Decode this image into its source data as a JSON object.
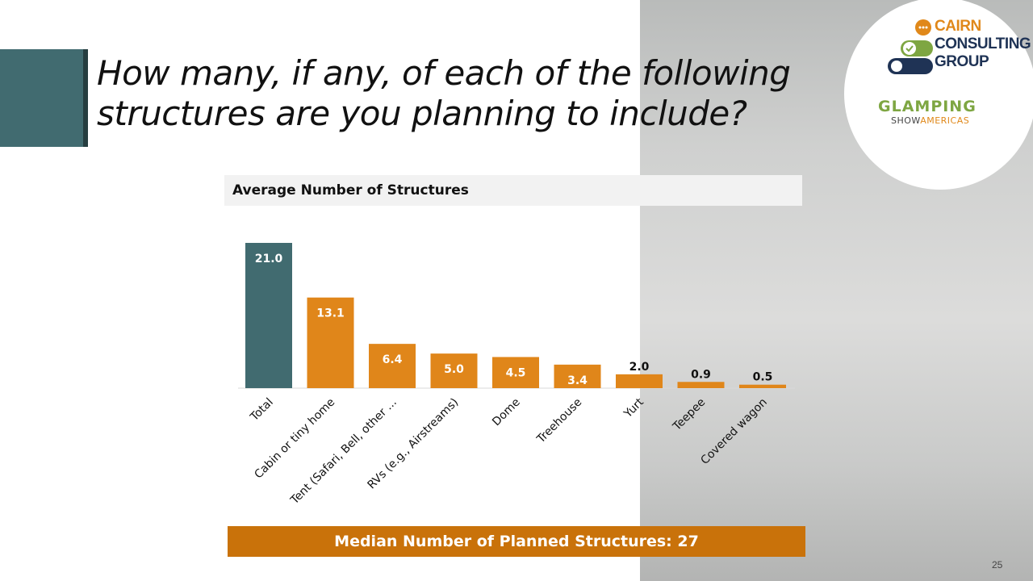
{
  "slide": {
    "title": "How many, if any, of each of the following structures are you planning to include?",
    "page_number": "25",
    "median_text": "Median Number of Planned Structures: 27"
  },
  "logos": {
    "cairn_line1": "CAIRN",
    "cairn_line2": "CONSULTING",
    "cairn_line3": "GROUP",
    "glamping": "GLAMPING",
    "show": "SHOW",
    "americas": "AMERICAS"
  },
  "colors": {
    "total_bar": "#416b70",
    "other_bars": "#e0861a",
    "accent": "#416b70",
    "median_box": "#c9720a"
  },
  "chart_data": {
    "type": "bar",
    "title": "Average Number of Structures",
    "xlabel": "",
    "ylabel": "",
    "categories": [
      "Total",
      "Cabin or tiny home",
      "Tent (Safari, Bell, other ...",
      "RVs (e.g., Airstreams)",
      "Dome",
      "Treehouse",
      "Yurt",
      "Teepee",
      "Covered wagon"
    ],
    "values": [
      21.0,
      13.1,
      6.4,
      5.0,
      4.5,
      3.4,
      2.0,
      0.9,
      0.5
    ],
    "labels": [
      "21.0",
      "13.1",
      "6.4",
      "5.0",
      "4.5",
      "3.4",
      "2.0",
      "0.9",
      "0.5"
    ],
    "ylim": [
      0,
      21.0
    ],
    "grid": false,
    "legend": "none"
  }
}
